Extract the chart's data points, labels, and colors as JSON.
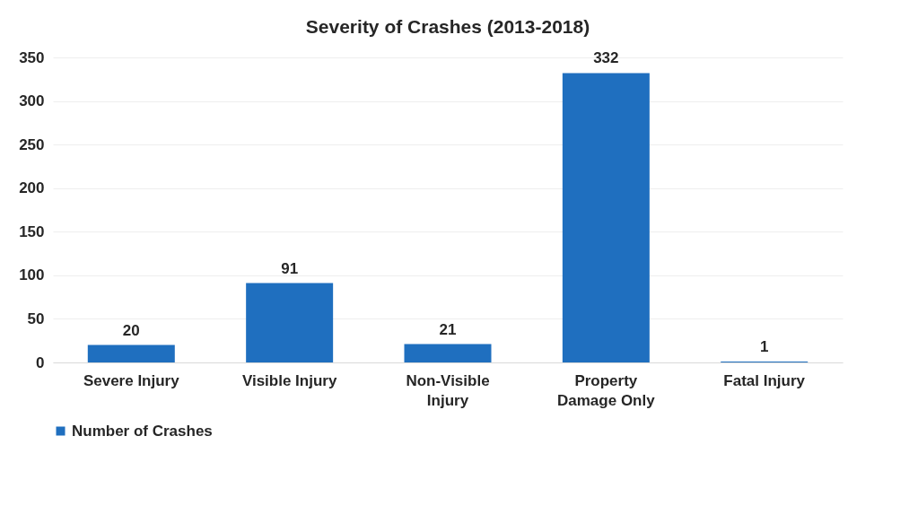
{
  "chart_data": {
    "type": "bar",
    "title": "Severity of Crashes (2013-2018)",
    "categories": [
      "Severe Injury",
      "Visible Injury",
      "Non-Visible Injury",
      "Property Damage Only",
      "Fatal Injury"
    ],
    "series": [
      {
        "name": "Number of Crashes",
        "color": "#1f6fbf",
        "values": [
          20,
          91,
          21,
          332,
          1
        ]
      }
    ],
    "ylim": [
      0,
      350
    ],
    "yticks": [
      0,
      50,
      100,
      150,
      200,
      250,
      300,
      350
    ],
    "grid": "y",
    "legend": "bottom",
    "data_labels": true
  }
}
